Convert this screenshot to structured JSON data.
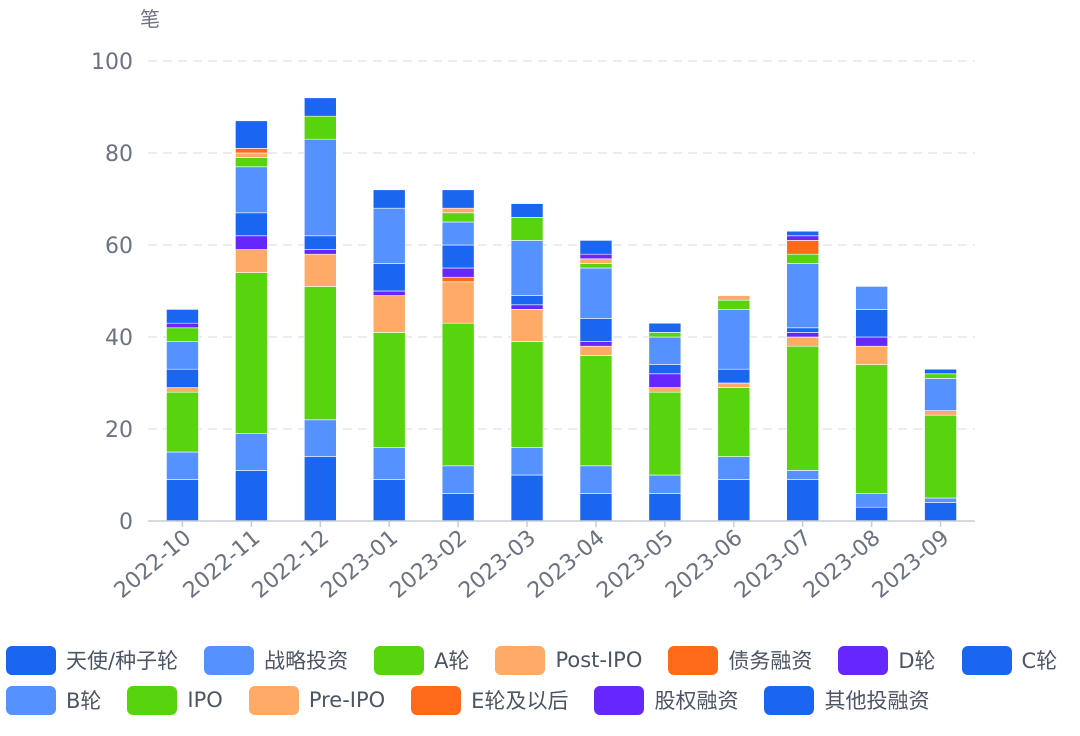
{
  "chart_data": {
    "type": "bar",
    "stacked": true,
    "ylabel": "笔",
    "ylim": [
      0,
      100
    ],
    "yticks": [
      "0",
      "20",
      "40",
      "60",
      "80",
      "100"
    ],
    "grid": true,
    "legend_position": "bottom",
    "categories": [
      "2022-10",
      "2022-11",
      "2022-12",
      "2023-01",
      "2023-02",
      "2023-03",
      "2023-04",
      "2023-05",
      "2023-06",
      "2023-07",
      "2023-08",
      "2023-09"
    ],
    "series": [
      {
        "name": "天使/种子轮",
        "color": "#1a66f0",
        "values": [
          9,
          11,
          14,
          9,
          6,
          10,
          6,
          6,
          9,
          9,
          3,
          4
        ]
      },
      {
        "name": "战略投资",
        "color": "#5592ff",
        "values": [
          6,
          8,
          8,
          7,
          6,
          6,
          6,
          4,
          5,
          2,
          3,
          1
        ]
      },
      {
        "name": "A轮",
        "color": "#57d40d",
        "values": [
          13,
          35,
          29,
          25,
          31,
          23,
          24,
          18,
          15,
          27,
          28,
          18
        ]
      },
      {
        "name": "Post-IPO",
        "color": "#ffaa66",
        "values": [
          1,
          5,
          7,
          8,
          9,
          7,
          2,
          1,
          1,
          2,
          4,
          1
        ]
      },
      {
        "name": "债务融资",
        "color": "#ff6a1a",
        "values": [
          0,
          0,
          0,
          0,
          1,
          0,
          0,
          0,
          0,
          0,
          0,
          0
        ]
      },
      {
        "name": "D轮",
        "color": "#6627ff",
        "values": [
          0,
          3,
          1,
          1,
          2,
          1,
          1,
          3,
          0,
          1,
          2,
          0
        ]
      },
      {
        "name": "C轮",
        "color": "#1a66f0",
        "values": [
          4,
          5,
          3,
          6,
          5,
          2,
          5,
          2,
          3,
          1,
          6,
          0
        ]
      },
      {
        "name": "B轮",
        "color": "#5592ff",
        "values": [
          6,
          10,
          21,
          12,
          5,
          12,
          11,
          6,
          13,
          14,
          5,
          7
        ]
      },
      {
        "name": "IPO",
        "color": "#57d40d",
        "values": [
          3,
          2,
          5,
          0,
          2,
          5,
          1,
          1,
          2,
          2,
          0,
          1
        ]
      },
      {
        "name": "Pre-IPO",
        "color": "#ffaa66",
        "values": [
          0,
          1,
          0,
          0,
          1,
          0,
          1,
          0,
          1,
          0,
          0,
          0
        ]
      },
      {
        "name": "E轮及以后",
        "color": "#ff6a1a",
        "values": [
          0,
          1,
          0,
          0,
          0,
          0,
          0,
          0,
          0,
          3,
          0,
          0
        ]
      },
      {
        "name": "股权融资",
        "color": "#6627ff",
        "values": [
          1,
          0,
          0,
          0,
          0,
          0,
          1,
          0,
          0,
          1,
          0,
          0
        ]
      },
      {
        "name": "其他投融资",
        "color": "#1a66f0",
        "values": [
          3,
          6,
          4,
          4,
          4,
          3,
          3,
          2,
          0,
          1,
          0,
          1
        ]
      }
    ]
  },
  "legend": {
    "rows": [
      [
        {
          "label": "天使/种子轮",
          "color": "#1a66f0"
        },
        {
          "label": "战略投资",
          "color": "#5592ff"
        },
        {
          "label": "A轮",
          "color": "#57d40d"
        },
        {
          "label": "Post-IPO",
          "color": "#ffaa66"
        },
        {
          "label": "债务融资",
          "color": "#ff6a1a"
        },
        {
          "label": "D轮",
          "color": "#6627ff"
        },
        {
          "label": "C轮",
          "color": "#1a66f0"
        }
      ],
      [
        {
          "label": "B轮",
          "color": "#5592ff"
        },
        {
          "label": "IPO",
          "color": "#57d40d"
        },
        {
          "label": "Pre-IPO",
          "color": "#ffaa66"
        },
        {
          "label": "E轮及以后",
          "color": "#ff6a1a"
        },
        {
          "label": "股权融资",
          "color": "#6627ff"
        },
        {
          "label": "其他投融资",
          "color": "#1a66f0"
        }
      ]
    ]
  }
}
